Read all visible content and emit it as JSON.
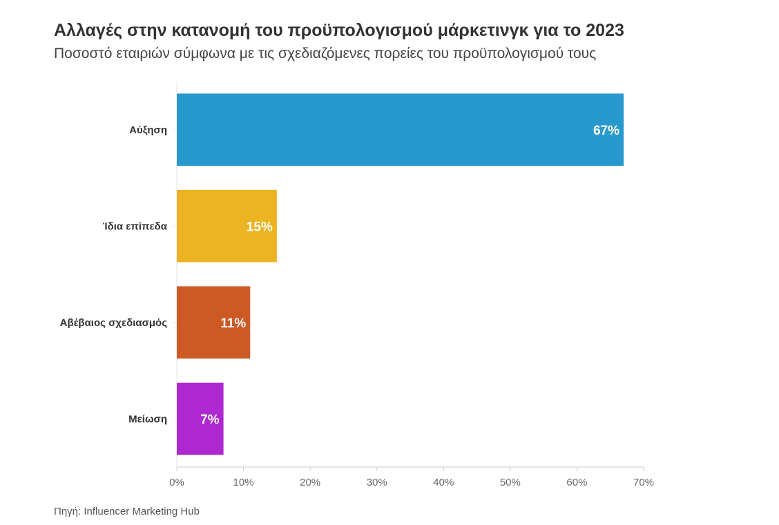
{
  "header": {
    "title": "Αλλαγές στην κατανομή του προϋπολογισμού μάρκετινγκ για το 2023",
    "subtitle": "Ποσοστό εταιριών σύμφωνα με τις σχεδιαζόμενες πορείες του προϋπολογισμού τους"
  },
  "footer": {
    "source": "Πηγή: Influencer Marketing Hub"
  },
  "chart_data": {
    "type": "bar",
    "orientation": "horizontal",
    "title": "Αλλαγές στην κατανομή του προϋπολογισμού μάρκετινγκ για το 2023",
    "subtitle": "Ποσοστό εταιριών σύμφωνα με τις σχεδιαζόμενες πορείες του προϋπολογισμού τους",
    "xlabel": "",
    "ylabel": "",
    "categories": [
      "Αύξηση",
      "Ίδια επίπεδα",
      "Αβέβαιος σχεδιασμός",
      "Μείωση"
    ],
    "values": [
      67,
      15,
      11,
      7
    ],
    "value_labels": [
      "67%",
      "15%",
      "11%",
      "7%"
    ],
    "colors": [
      "#2899cd",
      "#ecb422",
      "#cd5a25",
      "#ad28ce"
    ],
    "xlim": [
      0,
      70
    ],
    "ticks": [
      0,
      10,
      20,
      30,
      40,
      50,
      60,
      70
    ],
    "tick_labels": [
      "0%",
      "10%",
      "20%",
      "30%",
      "40%",
      "50%",
      "60%",
      "70%"
    ],
    "grid": false,
    "legend": "none"
  }
}
